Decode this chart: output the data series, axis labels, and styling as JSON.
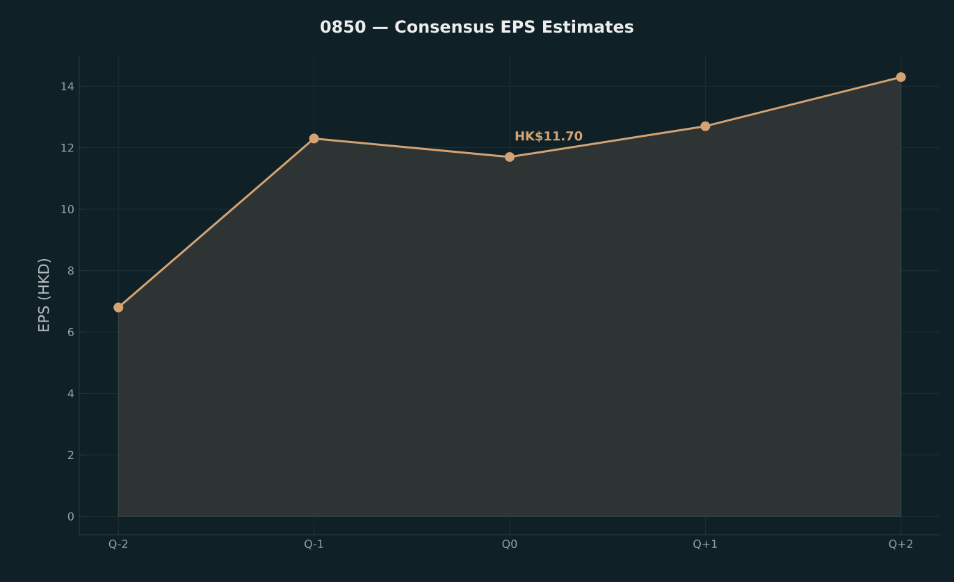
{
  "chart_data": {
    "type": "area",
    "title": "0850 — Consensus EPS Estimates",
    "ylabel": "EPS (HKD)",
    "categories": [
      "Q-2",
      "Q-1",
      "Q0",
      "Q+1",
      "Q+2"
    ],
    "series": [
      {
        "color": "#d4a373",
        "values": [
          6.8,
          12.3,
          11.7,
          12.7,
          14.3
        ]
      }
    ],
    "ylim": [
      -0.6,
      15
    ],
    "yticks": [
      0,
      2,
      4,
      6,
      8,
      10,
      12,
      14
    ],
    "annotations": [
      {
        "text": "HK$11.70",
        "x": "Q0",
        "y": 11.7
      }
    ],
    "grid": true,
    "marker": "circle",
    "line_style": "solid"
  }
}
